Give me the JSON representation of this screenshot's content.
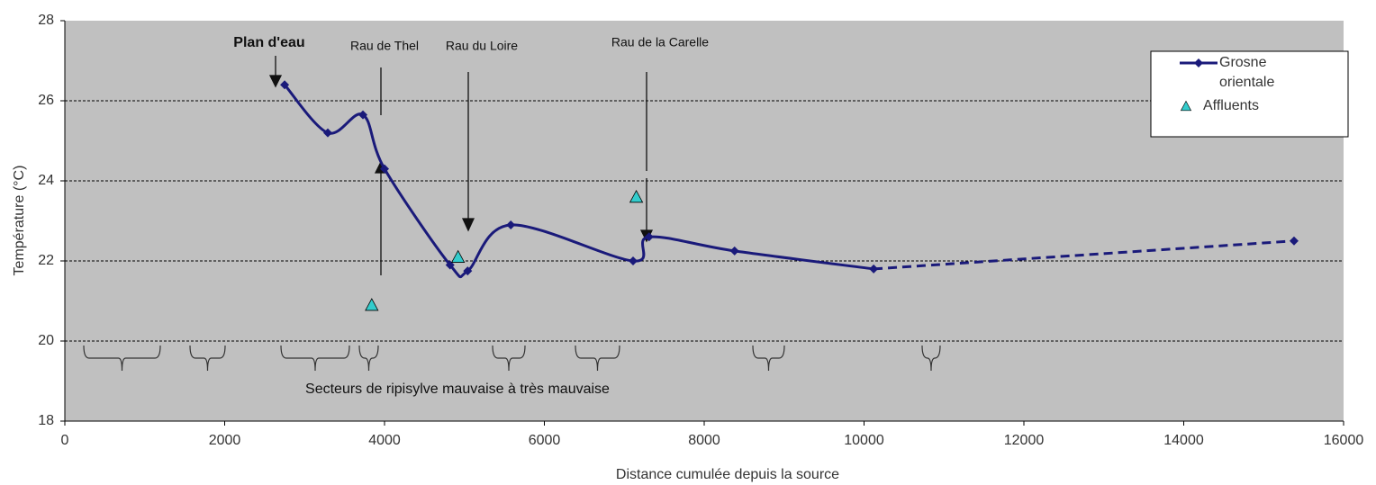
{
  "chart_data": {
    "type": "line",
    "x_label": "Distance cumulée depuis la source",
    "y_label": "Température (°C)",
    "xlim": [
      0,
      16000
    ],
    "xticks": [
      0,
      2000,
      4000,
      6000,
      8000,
      10000,
      12000,
      14000,
      16000
    ],
    "ylim": [
      18,
      28
    ],
    "yticks": [
      18,
      20,
      22,
      24,
      26,
      28
    ],
    "grid": true,
    "legend": "upper right",
    "series": [
      {
        "name": "Grosne orientale",
        "color": "#1a1a7a",
        "kind": "line",
        "dashed_from_index": 10,
        "x": [
          2750,
          3290,
          3730,
          4000,
          4820,
          5040,
          5580,
          7110,
          7310,
          8380,
          10120,
          15380
        ],
        "values": [
          26.4,
          25.2,
          25.65,
          24.3,
          21.9,
          21.75,
          22.9,
          22.0,
          22.6,
          22.25,
          21.8,
          22.5
        ]
      },
      {
        "name": "Affluents",
        "color": "#33cccc",
        "kind": "scatter",
        "x": [
          3840,
          4920,
          7150
        ],
        "values": [
          20.9,
          22.1,
          23.6
        ]
      }
    ],
    "annotations": [
      "Plan d'eau",
      "Rau de Thel",
      "Rau du Loire",
      "Rau de la Carelle",
      "Secteurs de ripisylve mauvaise à très mauvaise"
    ]
  }
}
